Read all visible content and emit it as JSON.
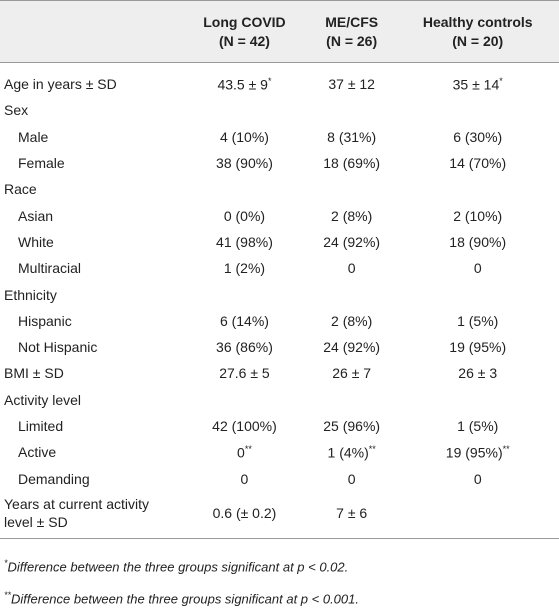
{
  "table": {
    "header": [
      [
        "Long COVID",
        "(N = 42)"
      ],
      [
        "ME/CFS",
        "(N = 26)"
      ],
      [
        "Healthy controls",
        "(N = 20)"
      ]
    ],
    "rows": [
      {
        "label": "Age in years ± SD",
        "indent": false,
        "cells": [
          {
            "text": "43.5 ± 9",
            "sup": "*"
          },
          "37 ± 12",
          {
            "text": "35 ± 14",
            "sup": "*"
          }
        ]
      },
      {
        "label": "Sex",
        "indent": false,
        "cells": []
      },
      {
        "label": "Male",
        "indent": true,
        "cells": [
          "4 (10%)",
          "8 (31%)",
          "6 (30%)"
        ]
      },
      {
        "label": "Female",
        "indent": true,
        "cells": [
          "38 (90%)",
          "18 (69%)",
          "14 (70%)"
        ]
      },
      {
        "label": "Race",
        "indent": false,
        "cells": []
      },
      {
        "label": "Asian",
        "indent": true,
        "cells": [
          "0 (0%)",
          "2 (8%)",
          "2 (10%)"
        ]
      },
      {
        "label": "White",
        "indent": true,
        "cells": [
          "41 (98%)",
          "24 (92%)",
          "18 (90%)"
        ]
      },
      {
        "label": "Multiracial",
        "indent": true,
        "cells": [
          "1 (2%)",
          "0",
          "0"
        ]
      },
      {
        "label": "Ethnicity",
        "indent": false,
        "cells": []
      },
      {
        "label": "Hispanic",
        "indent": true,
        "cells": [
          "6 (14%)",
          "2 (8%)",
          "1 (5%)"
        ]
      },
      {
        "label": "Not Hispanic",
        "indent": true,
        "cells": [
          "36 (86%)",
          "24 (92%)",
          "19 (95%)"
        ]
      },
      {
        "label": "BMI ± SD",
        "indent": false,
        "cells": [
          "27.6 ± 5",
          "26 ± 7",
          "26 ± 3"
        ]
      },
      {
        "label": "Activity level",
        "indent": false,
        "cells": []
      },
      {
        "label": "Limited",
        "indent": true,
        "cells": [
          "42 (100%)",
          "25 (96%)",
          "1 (5%)"
        ]
      },
      {
        "label": "Active",
        "indent": true,
        "cells": [
          {
            "text": "0",
            "sup": "**"
          },
          {
            "text": "1 (4%)",
            "sup": "**"
          },
          {
            "text": "19 (95%)",
            "sup": "**"
          }
        ]
      },
      {
        "label": "Demanding",
        "indent": true,
        "cells": [
          "0",
          "0",
          "0"
        ]
      },
      {
        "label": "Years at current activity level ± SD",
        "indent": false,
        "cells": [
          "0.6 (± 0.2)",
          "7 ± 6",
          ""
        ]
      }
    ]
  },
  "footnotes": [
    {
      "mark": "*",
      "text": "Difference between the three groups significant at p < 0.02."
    },
    {
      "mark": "**",
      "text": "Difference between the three groups significant at p < 0.001."
    }
  ]
}
